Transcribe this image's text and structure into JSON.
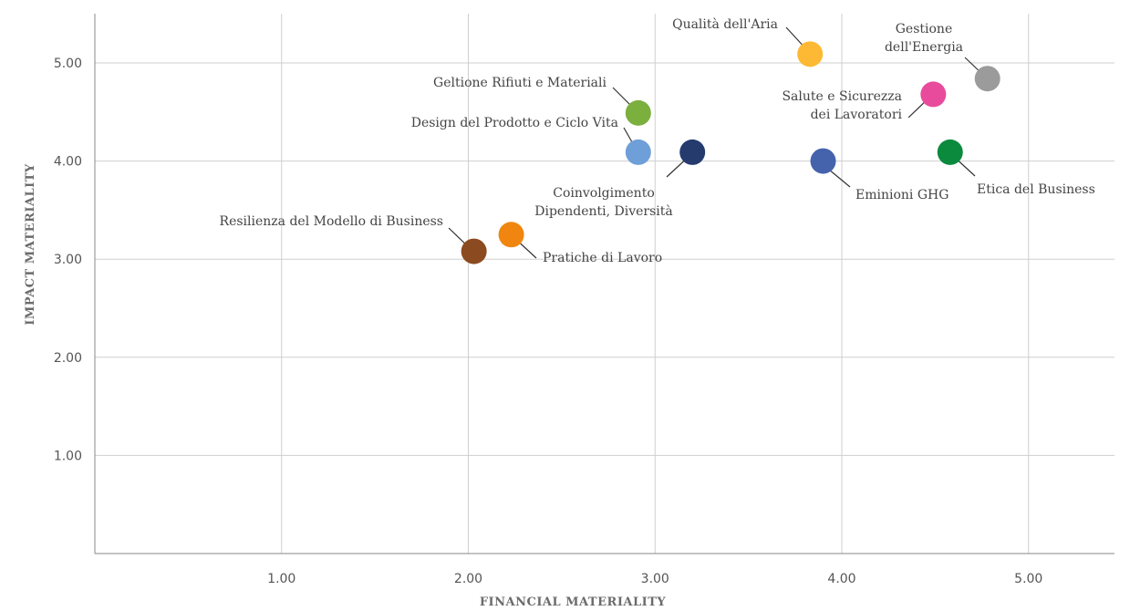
{
  "chart_data": {
    "type": "scatter",
    "title": "",
    "xlabel": "FINANCIAL MATERIALITY",
    "ylabel": "IMPACT MATERIALITY",
    "xlim": [
      0,
      5.45
    ],
    "ylim": [
      0,
      5.5
    ],
    "x_ticks": [
      1,
      2,
      3,
      4,
      5
    ],
    "y_ticks": [
      1,
      2,
      3,
      4,
      5
    ],
    "x_tick_labels": [
      "1.00",
      "2.00",
      "3.00",
      "4.00",
      "5.00"
    ],
    "y_tick_labels": [
      "1.00",
      "2.00",
      "3.00",
      "4.00",
      "5.00"
    ],
    "grid": true,
    "legend": "none",
    "points": [
      {
        "label": [
          "Qualità dell'Aria"
        ],
        "x": 3.83,
        "y": 5.09,
        "color": "#FDB933"
      },
      {
        "label": [
          "Gestione",
          "dell'Energia"
        ],
        "x": 4.78,
        "y": 4.84,
        "color": "#9B9B9B"
      },
      {
        "label": [
          "Geltione Rifiuti e Materiali"
        ],
        "x": 2.91,
        "y": 4.49,
        "color": "#7BAF3E"
      },
      {
        "label": [
          "Salute e Sicurezza",
          "dei Lavoratori"
        ],
        "x": 4.49,
        "y": 4.68,
        "color": "#E84B9B"
      },
      {
        "label": [
          "Design del Prodotto e Ciclo Vita"
        ],
        "x": 2.91,
        "y": 4.09,
        "color": "#6F9FD8"
      },
      {
        "label": [
          "Coinvolgimento",
          "Dipendenti, Diversità"
        ],
        "x": 3.2,
        "y": 4.09,
        "color": "#253B6E"
      },
      {
        "label": [
          "Eminioni GHG"
        ],
        "x": 3.9,
        "y": 4.0,
        "color": "#4563AD"
      },
      {
        "label": [
          "Etica del Business"
        ],
        "x": 4.58,
        "y": 4.09,
        "color": "#0B8A3E"
      },
      {
        "label": [
          "Resilienza del Modello di Business"
        ],
        "x": 2.03,
        "y": 3.08,
        "color": "#8B4A1F"
      },
      {
        "label": [
          "Pratiche di Lavoro"
        ],
        "x": 2.23,
        "y": 3.25,
        "color": "#F0860F"
      }
    ]
  }
}
